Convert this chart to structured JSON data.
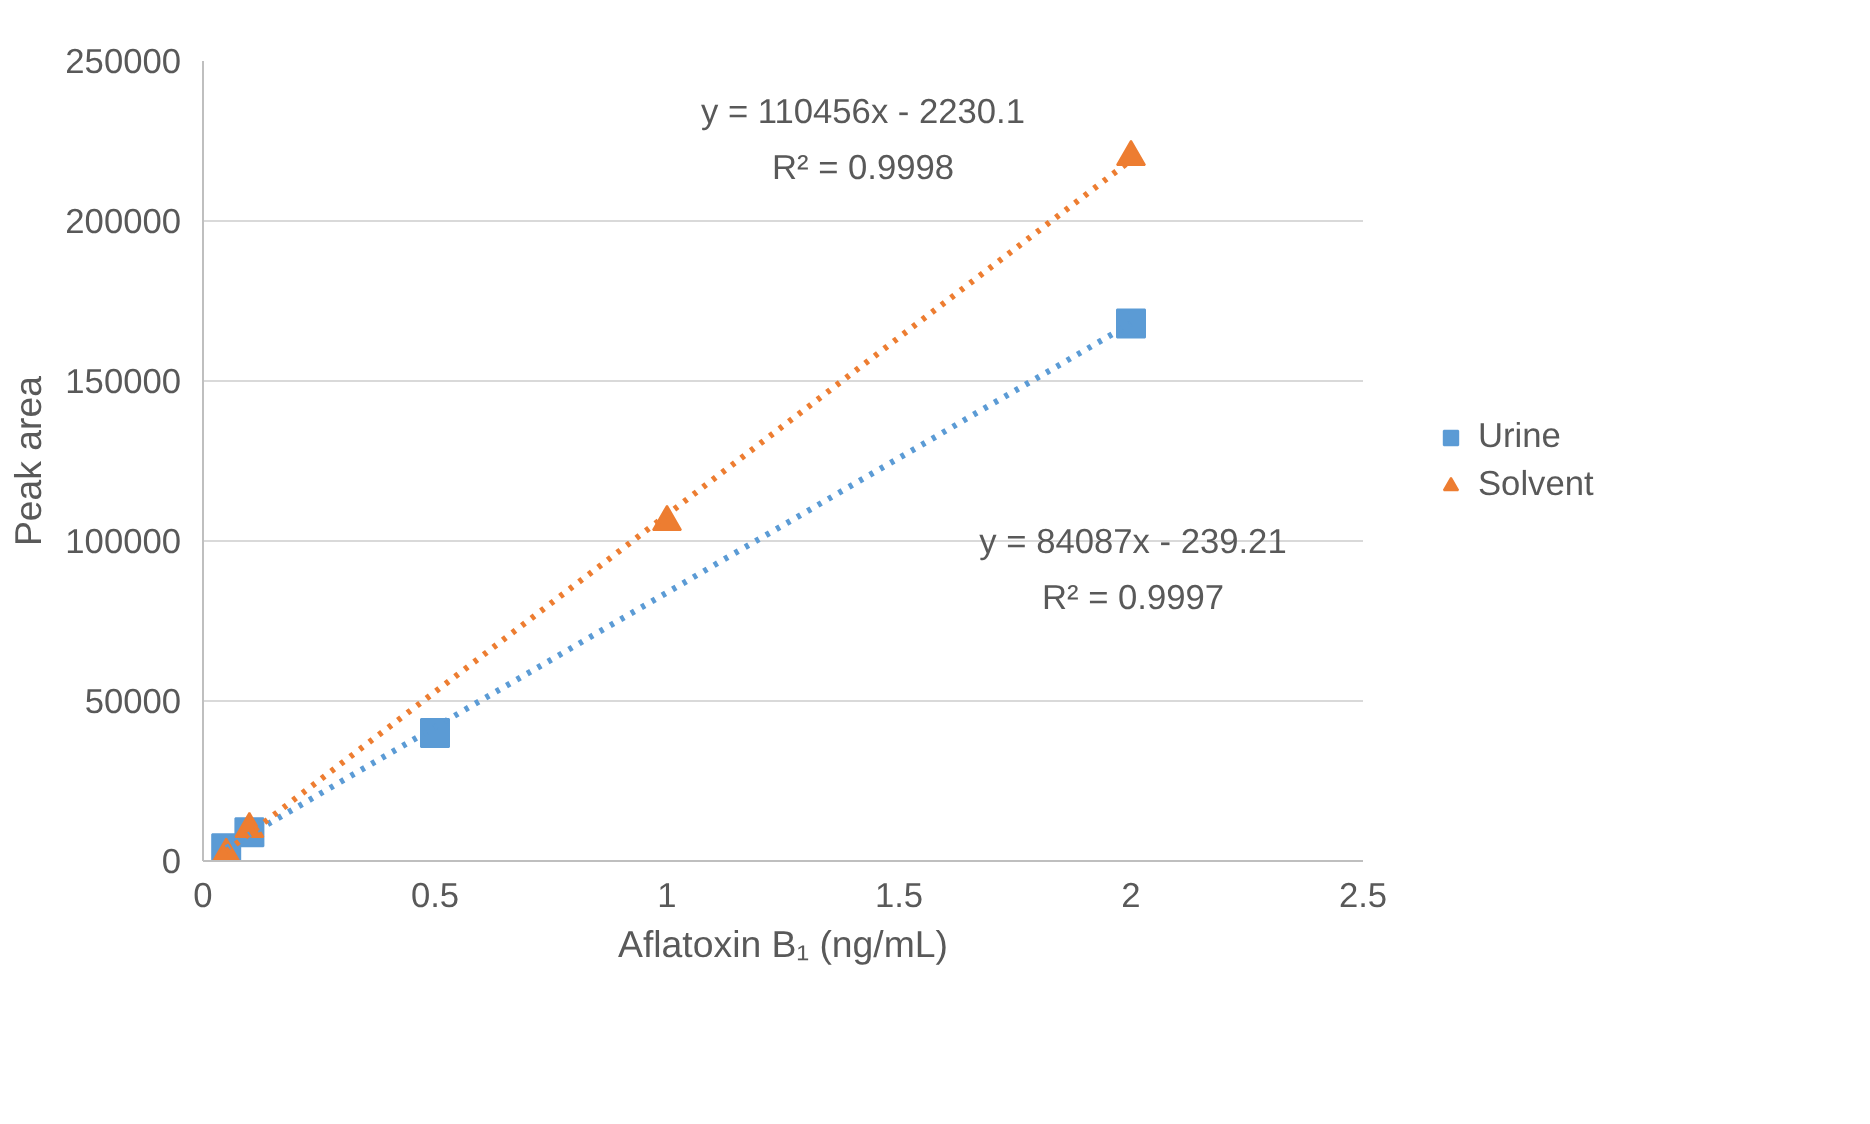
{
  "chart_data": {
    "type": "scatter",
    "xlabel": "Aflatoxin B₁ (ng/mL)",
    "ylabel": "Peak area",
    "xlim": [
      0,
      2.5
    ],
    "xticks": [
      0,
      0.5,
      1,
      1.5,
      2,
      2.5
    ],
    "ylim": [
      0,
      250000
    ],
    "yticks": [
      0,
      50000,
      100000,
      150000,
      200000,
      250000
    ],
    "grid": "y",
    "legend": "right",
    "series": [
      {
        "name": "Urine",
        "color": "#5b9bd5",
        "marker": "square",
        "x": [
          0.05,
          0.1,
          0.5,
          2
        ],
        "values": [
          4000,
          9000,
          40000,
          168000
        ]
      },
      {
        "name": "Solvent",
        "color": "#ed7d31",
        "marker": "triangle",
        "x": [
          0.05,
          0.1,
          1,
          2
        ],
        "values": [
          2000,
          10000,
          106000,
          220000
        ]
      },
      {
        "type": "line",
        "color": "#5b9bd5",
        "line_style": "dotted",
        "marker": "none",
        "x": [
          0.05,
          2
        ],
        "values": [
          4000,
          168000
        ]
      },
      {
        "type": "line",
        "color": "#ed7d31",
        "line_style": "dotted",
        "marker": "none",
        "x": [
          0.05,
          2
        ],
        "values": [
          3000,
          219000
        ]
      }
    ],
    "annotations": [
      "y = 110456x - 2230.1",
      "R² = 0.9998",
      "y = 84087x - 239.21",
      "R² = 0.9997"
    ]
  }
}
